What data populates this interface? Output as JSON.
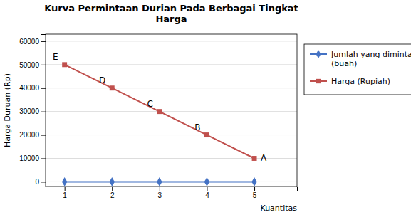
{
  "chart_data": {
    "type": "line",
    "title": "Kurva Permintaan Durian Pada Berbagai Tingkat\nHarga",
    "x": [
      1,
      2,
      3,
      4,
      5
    ],
    "series": [
      {
        "name": "Jumlah yang diminta\n(buah)",
        "color": "#4472C4",
        "marker": "diamond",
        "values": [
          1,
          1,
          1,
          1,
          1
        ]
      },
      {
        "name": "Harga (Rupiah)",
        "color": "#C0504D",
        "marker": "square",
        "values": [
          50000,
          40000,
          30000,
          20000,
          10000
        ]
      }
    ],
    "xlabel": "Kuantitas",
    "ylabel": "Harga Duruan (Rp)",
    "xlim": [
      0.6,
      5.9
    ],
    "ylim": [
      -2000,
      63000
    ],
    "xticks": [
      1,
      2,
      3,
      4,
      5
    ],
    "yticks": [
      0,
      10000,
      20000,
      30000,
      40000,
      50000,
      60000
    ],
    "annotations": [
      {
        "text": "E",
        "x": 1,
        "y": 50000
      },
      {
        "text": "D",
        "x": 2,
        "y": 40000
      },
      {
        "text": "C",
        "x": 3,
        "y": 30000
      },
      {
        "text": "B",
        "x": 4,
        "y": 20000
      },
      {
        "text": "A",
        "x": 5,
        "y": 10000
      }
    ],
    "grid": true,
    "legend": "right"
  }
}
